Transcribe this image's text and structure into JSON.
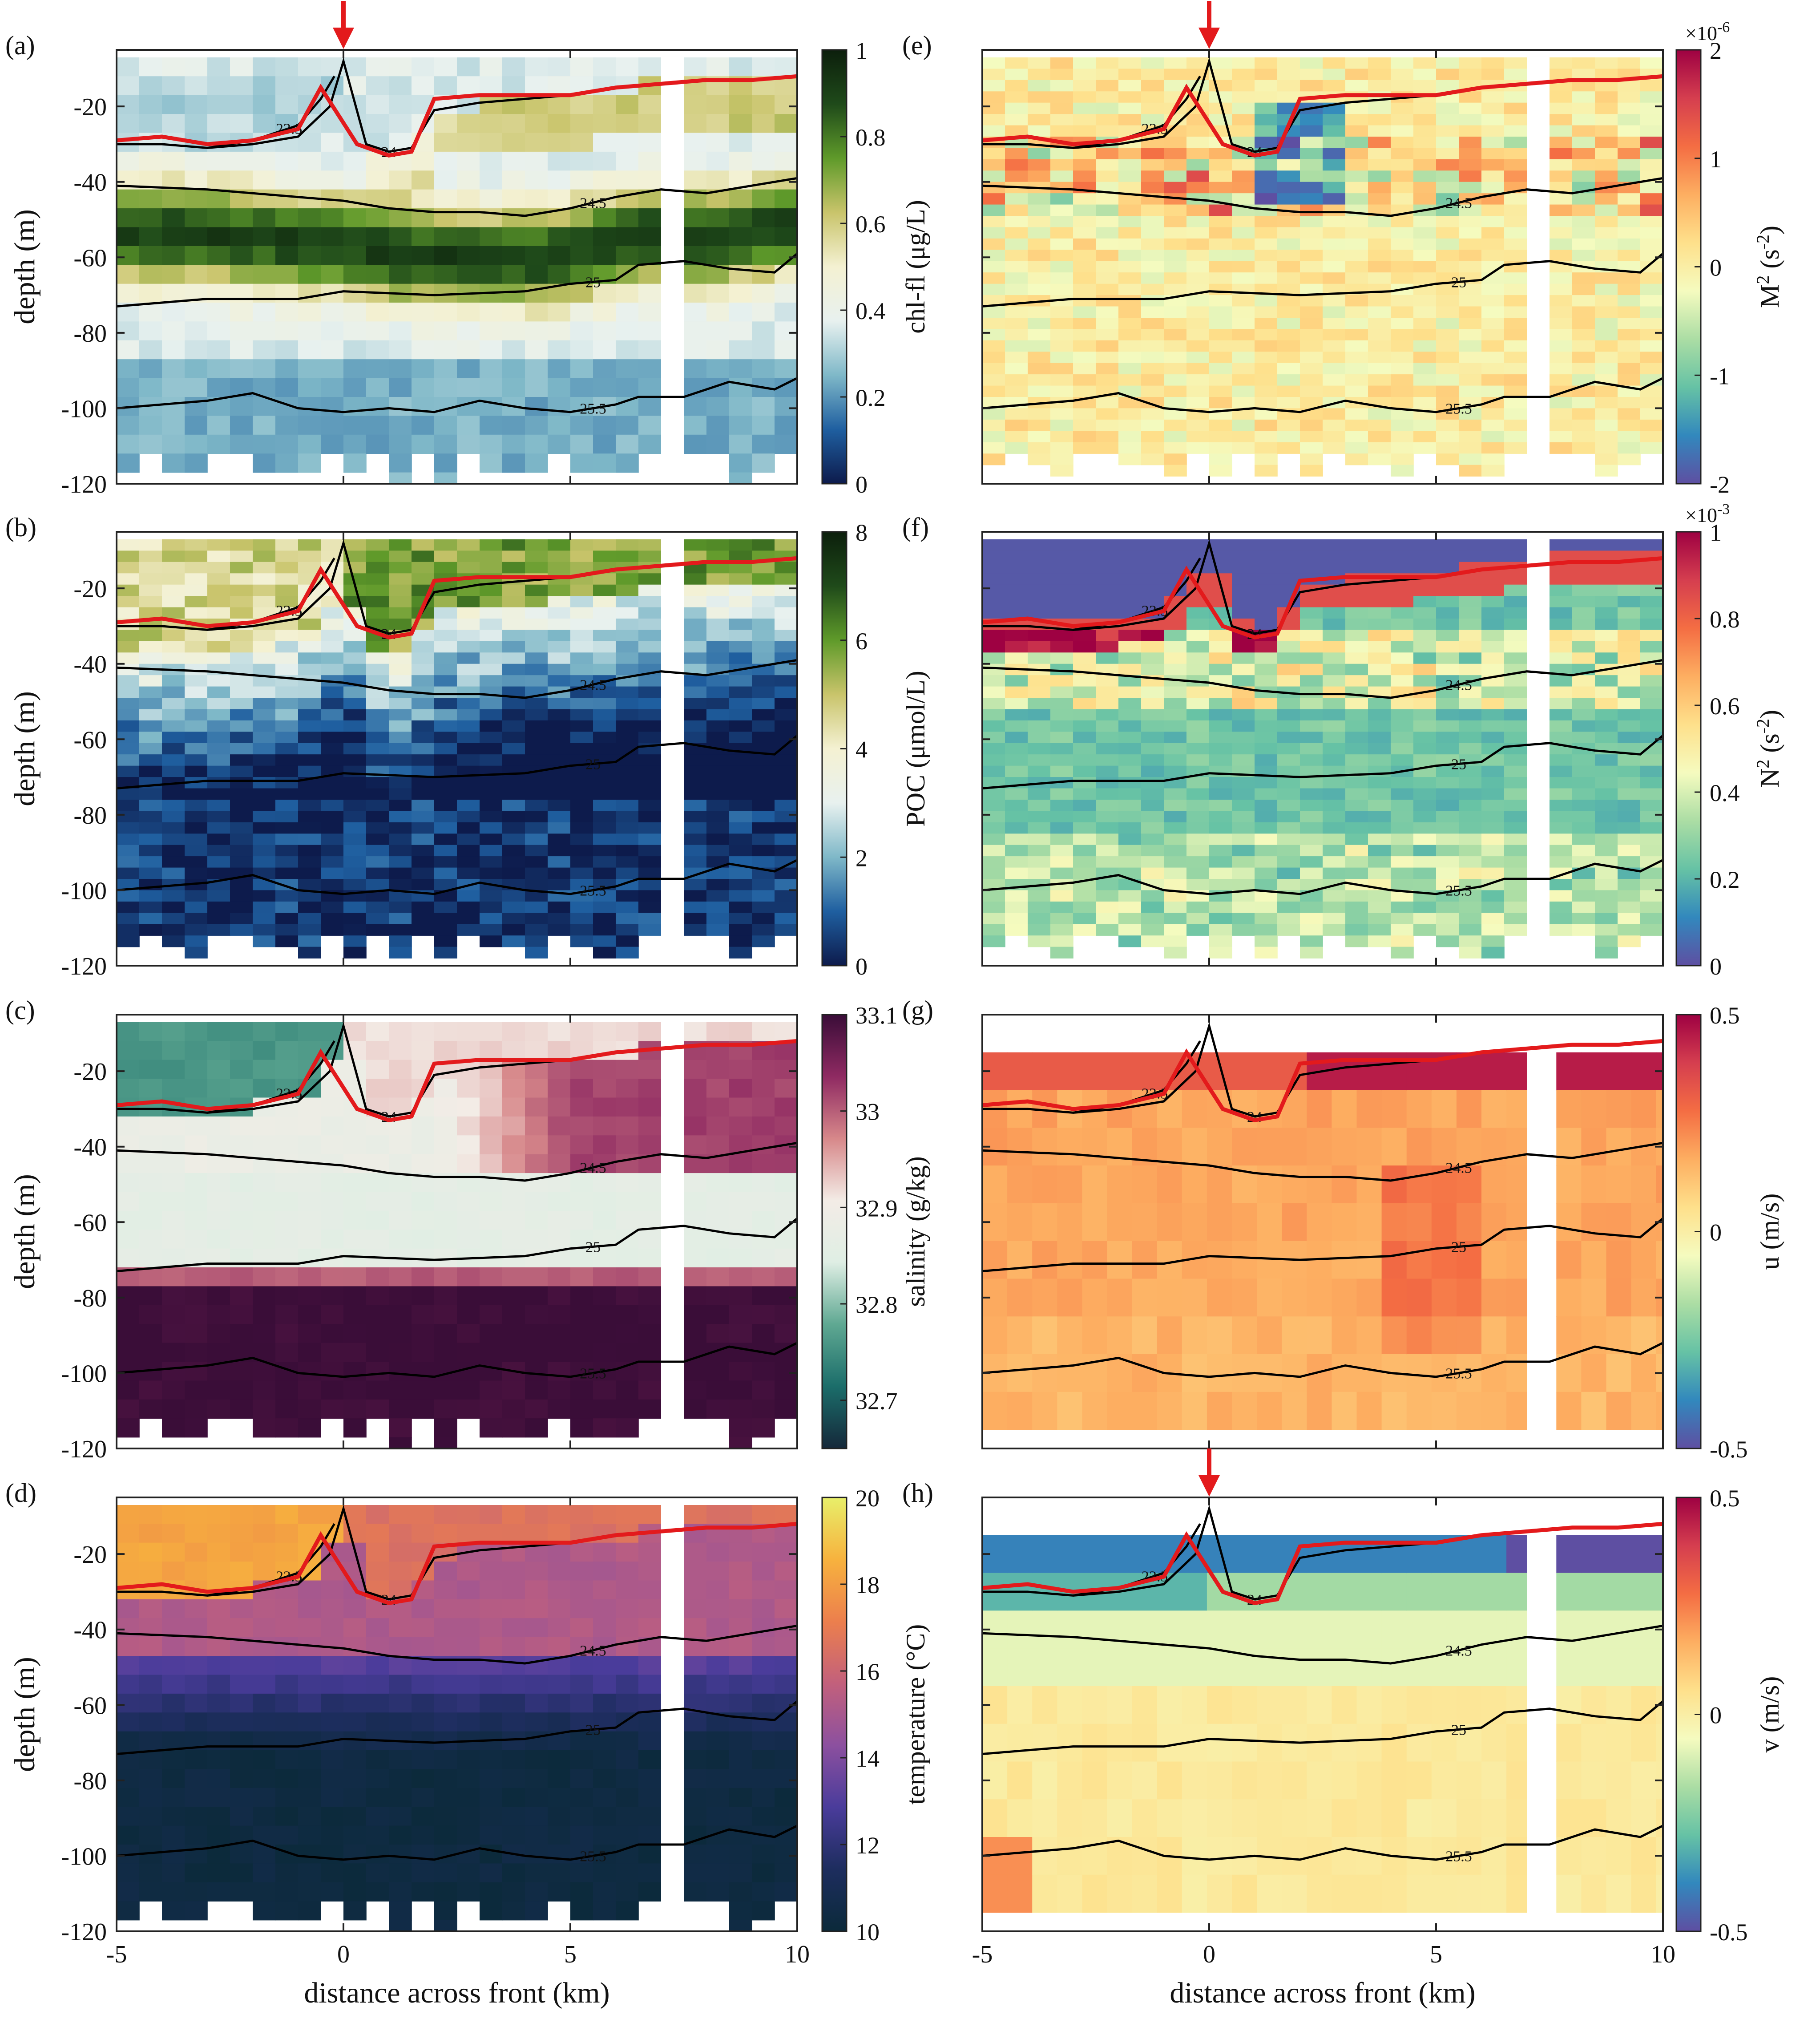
{
  "chart_data": {
    "type": "heatmap",
    "shared": {
      "xlabel": "distance across front (km)",
      "ylabel": "depth (m)",
      "xlim": [
        -5,
        10
      ],
      "ylim": [
        -120,
        -5
      ],
      "xticks": [
        -5,
        0,
        5,
        10
      ],
      "yticks": [
        -20,
        -40,
        -60,
        -80,
        -100,
        -120
      ],
      "gap_km": [
        7.0,
        7.4
      ],
      "front_arrow_x": 0,
      "mixed_layer_line": {
        "color": "#e31a1c",
        "x": [
          -5,
          -4,
          -3,
          -2,
          -1,
          -0.5,
          0.3,
          1,
          1.5,
          2,
          3,
          4,
          5,
          6,
          7,
          8,
          9,
          10
        ],
        "y": [
          -29,
          -28,
          -30,
          -29,
          -26,
          -15,
          -30,
          -33,
          -32,
          -18,
          -17,
          -17,
          -17,
          -15,
          -14,
          -13,
          -13,
          -12
        ]
      },
      "isopycnals": [
        {
          "label": "24",
          "x": [
            -5,
            -4,
            -3,
            -2,
            -1,
            -0.3,
            0,
            0.5,
            1,
            1.5,
            2,
            3,
            4,
            5,
            6,
            7,
            8,
            9,
            10
          ],
          "y": [
            -30,
            -30,
            -31,
            -30,
            -28,
            -20,
            -8,
            -30,
            -32,
            -31,
            -21,
            -19,
            -18,
            -17,
            -15,
            -14,
            -13,
            -13,
            -12
          ]
        },
        {
          "label": "23.5",
          "x": [
            -3,
            -2,
            -1,
            -0.5,
            -0.2
          ],
          "y": [
            -31,
            -29,
            -25,
            -18,
            -12
          ]
        },
        {
          "label": "24.5",
          "x": [
            -5,
            -3,
            -1,
            0,
            1,
            2,
            3,
            4,
            5,
            6,
            7,
            8,
            9,
            10
          ],
          "y": [
            -41,
            -42,
            -44,
            -45,
            -47,
            -48,
            -48,
            -49,
            -47,
            -44,
            -42,
            -43,
            -41,
            -39
          ]
        },
        {
          "label": "25",
          "x": [
            -5,
            -3,
            -1,
            0,
            2,
            4,
            5,
            6,
            6.5,
            7.5,
            8.5,
            9.5,
            10
          ],
          "y": [
            -73,
            -71,
            -71,
            -69,
            -70,
            -69,
            -67,
            -66,
            -62,
            -61,
            -63,
            -64,
            -59
          ]
        },
        {
          "label": "25.5",
          "x": [
            -5,
            -3,
            -2,
            -1,
            0,
            1,
            2,
            3,
            4,
            5,
            6,
            6.5,
            7.5,
            8.5,
            9.5,
            10
          ],
          "y": [
            -100,
            -98,
            -96,
            -100,
            -101,
            -100,
            -101,
            -98,
            -100,
            -101,
            -99,
            -97,
            -97,
            -93,
            -95,
            -92
          ]
        }
      ]
    },
    "panels": [
      {
        "id": "a",
        "label": "(a)",
        "variable": "chl-fl",
        "colorbar_label": "chl-fl (μg/L)",
        "clim": [
          0,
          1
        ],
        "cticks": [
          "0",
          "0.2",
          "0.4",
          "0.6",
          "0.8",
          "1"
        ],
        "colormap": [
          "#0d1b4c",
          "#1f5fa0",
          "#7fb8c8",
          "#e8f1ef",
          "#f4f1d2",
          "#c9c46b",
          "#5f9a2a",
          "#1f4a1a",
          "#0c1f0c"
        ],
        "arrow": true
      },
      {
        "id": "b",
        "label": "(b)",
        "variable": "POC",
        "colorbar_label": "POC (μmol/L)",
        "clim": [
          0,
          8
        ],
        "cticks": [
          "0",
          "2",
          "4",
          "6",
          "8"
        ],
        "colormap": [
          "#0d1b4c",
          "#1f5fa0",
          "#7fb8c8",
          "#e8f1ef",
          "#f4f1d2",
          "#c9c46b",
          "#5f9a2a",
          "#1f4a1a",
          "#0c1f0c"
        ],
        "arrow": false
      },
      {
        "id": "c",
        "label": "(c)",
        "variable": "salinity",
        "colorbar_label": "salinity (g/kg)",
        "clim": [
          32.65,
          33.1
        ],
        "cticks": [
          "32.7",
          "32.8",
          "32.9",
          "33",
          "33.1"
        ],
        "colormap": [
          "#15283a",
          "#1b6d6a",
          "#5fa892",
          "#dfeee4",
          "#f3ece6",
          "#d7888a",
          "#8f2a62",
          "#3a0d38"
        ],
        "arrow": false
      },
      {
        "id": "d",
        "label": "(d)",
        "variable": "temperature",
        "colorbar_label": "temperature (°C)",
        "clim": [
          10,
          20
        ],
        "cticks": [
          "10",
          "12",
          "14",
          "16",
          "18",
          "20"
        ],
        "colormap": [
          "#0b2a3a",
          "#1d2d5e",
          "#4a3c9b",
          "#8c509f",
          "#c2607c",
          "#ec7f4d",
          "#f7b23e",
          "#e8ef6a"
        ],
        "arrow": false
      },
      {
        "id": "e",
        "label": "(e)",
        "variable": "M2",
        "colorbar_label": "M2 (s-2)",
        "clim": [
          -2,
          2
        ],
        "cticks": [
          "-2",
          "-1",
          "0",
          "1",
          "2"
        ],
        "multiplier": "×10-6",
        "colormap": [
          "#5e4fa2",
          "#3288bd",
          "#66c2a5",
          "#abdda4",
          "#f5fbbf",
          "#fee08b",
          "#fdae61",
          "#f46d43",
          "#d53e4f",
          "#9e0142"
        ],
        "arrow": true
      },
      {
        "id": "f",
        "label": "(f)",
        "variable": "N2",
        "colorbar_label": "N2 (s-2)",
        "clim": [
          0,
          1
        ],
        "cticks": [
          "0",
          "0.2",
          "0.4",
          "0.6",
          "0.8",
          "1"
        ],
        "multiplier": "×10-3",
        "colormap": [
          "#5e4fa2",
          "#3288bd",
          "#66c2a5",
          "#abdda4",
          "#f5fbbf",
          "#fee08b",
          "#fdae61",
          "#f46d43",
          "#d53e4f",
          "#9e0142"
        ],
        "arrow": false
      },
      {
        "id": "g",
        "label": "(g)",
        "variable": "u",
        "colorbar_label": "u (m/s)",
        "clim": [
          -0.5,
          0.5
        ],
        "cticks": [
          "-0.5",
          "0",
          "0.5"
        ],
        "colormap": [
          "#5e4fa2",
          "#3288bd",
          "#66c2a5",
          "#abdda4",
          "#f5fbbf",
          "#fee08b",
          "#fdae61",
          "#f46d43",
          "#d53e4f",
          "#9e0142"
        ],
        "arrow": false
      },
      {
        "id": "h",
        "label": "(h)",
        "variable": "v",
        "colorbar_label": "v (m/s)",
        "clim": [
          -0.5,
          0.5
        ],
        "cticks": [
          "-0.5",
          "0",
          "0.5"
        ],
        "colormap": [
          "#5e4fa2",
          "#3288bd",
          "#66c2a5",
          "#abdda4",
          "#f5fbbf",
          "#fee08b",
          "#fdae61",
          "#f46d43",
          "#d53e4f",
          "#9e0142"
        ],
        "arrow": true
      }
    ]
  }
}
